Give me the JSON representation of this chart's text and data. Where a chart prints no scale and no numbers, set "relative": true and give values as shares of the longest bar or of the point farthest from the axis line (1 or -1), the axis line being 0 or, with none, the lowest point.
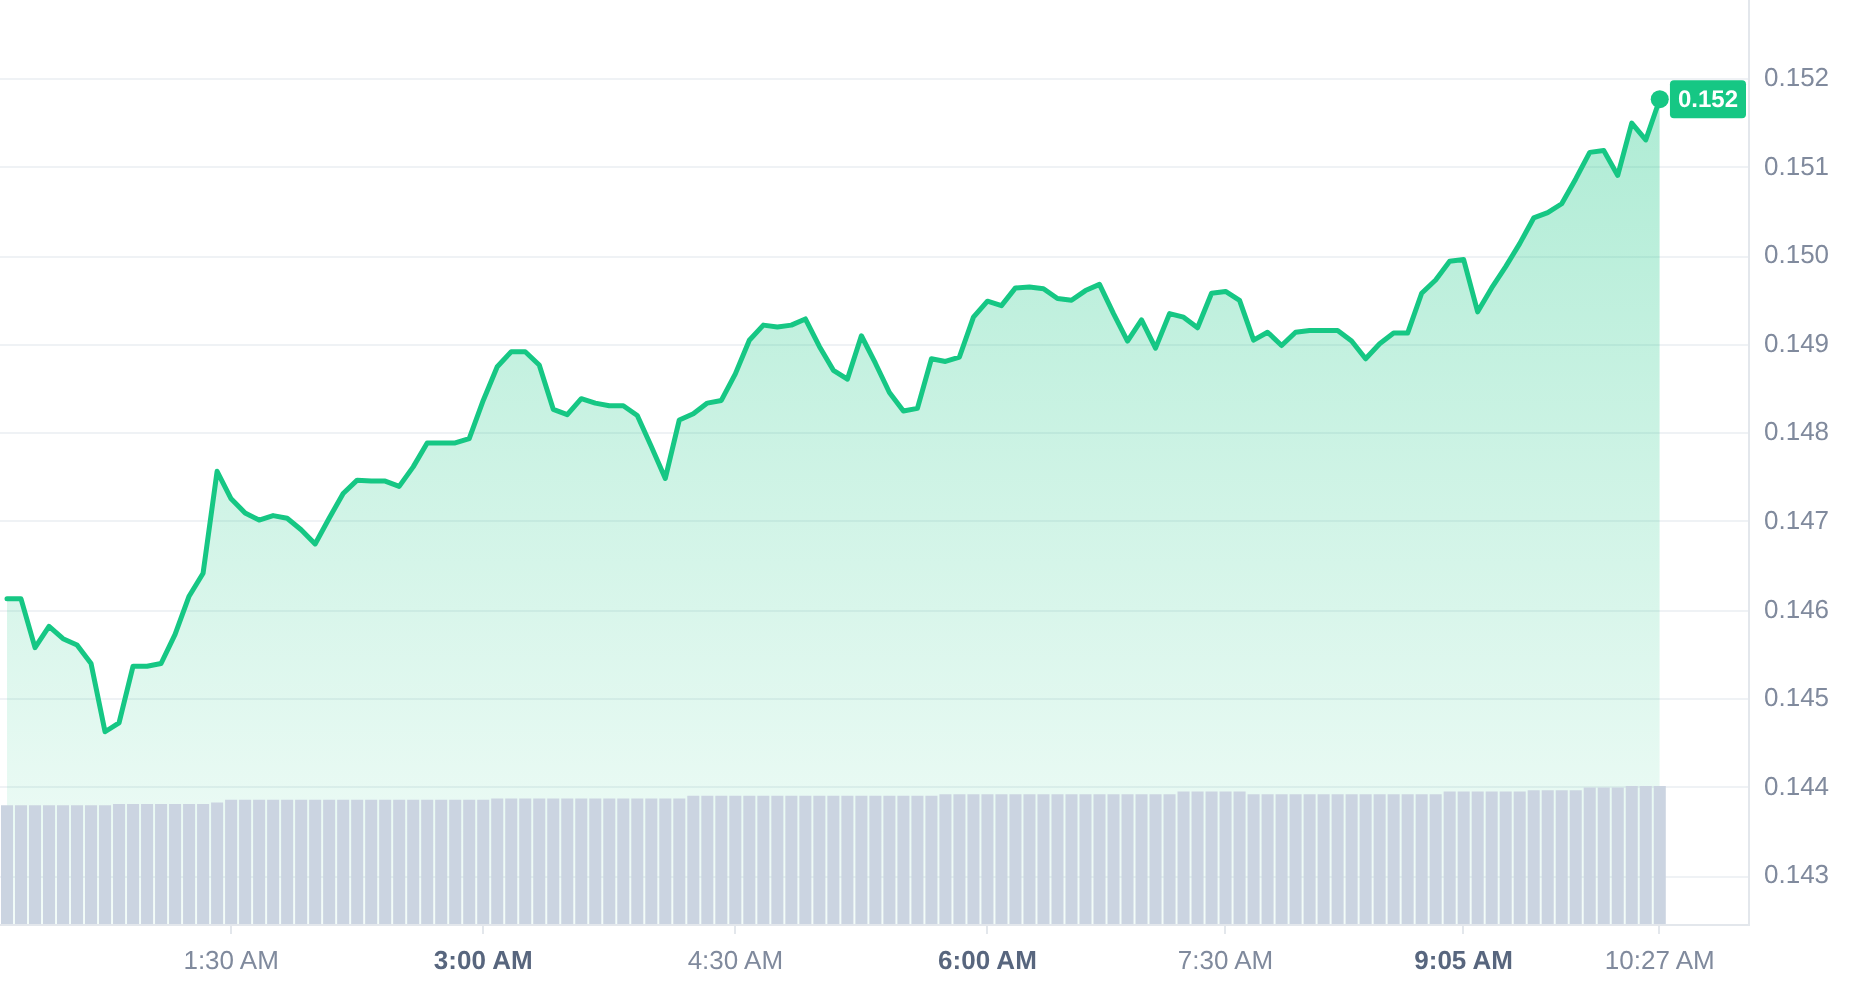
{
  "chart_data": [
    {
      "type": "area",
      "color": "#16c784",
      "categories": [
        null,
        null,
        null,
        null,
        null,
        null,
        null,
        null,
        null,
        null,
        null,
        null,
        null,
        null,
        null,
        null,
        "1:30 AM",
        null,
        null,
        null,
        null,
        null,
        null,
        null,
        null,
        null,
        null,
        null,
        null,
        null,
        null,
        null,
        null,
        null,
        "3:00 AM",
        null,
        null,
        null,
        null,
        null,
        null,
        null,
        null,
        null,
        null,
        null,
        null,
        null,
        null,
        null,
        null,
        null,
        "4:30 AM",
        null,
        null,
        null,
        null,
        null,
        null,
        null,
        null,
        null,
        null,
        null,
        null,
        null,
        null,
        null,
        null,
        null,
        "6:00 AM",
        null,
        null,
        null,
        null,
        null,
        null,
        null,
        null,
        null,
        null,
        null,
        null,
        null,
        null,
        null,
        null,
        "7:30 AM",
        null,
        null,
        null,
        null,
        null,
        null,
        null,
        null,
        null,
        null,
        null,
        null,
        null,
        null,
        null,
        null,
        "9:05 AM",
        null,
        null,
        null,
        null,
        null,
        null,
        null,
        null,
        null,
        null,
        null,
        null,
        null,
        "10:27 AM"
      ],
      "values": [
        0.14613,
        0.14613,
        0.14558,
        0.14582,
        0.14568,
        0.14561,
        0.1454,
        0.14463,
        0.14473,
        0.14537,
        0.14537,
        0.1454,
        0.14573,
        0.14616,
        0.14642,
        0.14757,
        0.14726,
        0.1471,
        0.14702,
        0.14707,
        0.14704,
        0.14691,
        0.14675,
        0.14704,
        0.14732,
        0.14747,
        0.14746,
        0.14746,
        0.1474,
        0.14762,
        0.14789,
        0.14789,
        0.14789,
        0.14794,
        0.14837,
        0.14875,
        0.14892,
        0.14892,
        0.14877,
        0.14827,
        0.14821,
        0.14839,
        0.14834,
        0.14831,
        0.14831,
        0.1482,
        0.14785,
        0.14749,
        0.14815,
        0.14822,
        0.14834,
        0.14837,
        0.14867,
        0.14905,
        0.14922,
        0.1492,
        0.14922,
        0.14929,
        0.14898,
        0.14871,
        0.14861,
        0.1491,
        0.14879,
        0.14846,
        0.14825,
        0.14828,
        0.14884,
        0.14881,
        0.14886,
        0.14931,
        0.14949,
        0.14944,
        0.14964,
        0.14965,
        0.14963,
        0.14952,
        0.1495,
        0.14961,
        0.14968,
        0.14935,
        0.14904,
        0.14928,
        0.14896,
        0.14935,
        0.14931,
        0.14919,
        0.14958,
        0.1496,
        0.1495,
        0.14905,
        0.14914,
        0.14899,
        0.14914,
        0.14916,
        0.14916,
        0.14916,
        0.14904,
        0.14884,
        0.14901,
        0.14913,
        0.14913,
        0.14958,
        0.14973,
        0.14994,
        0.14996,
        0.14937,
        0.14964,
        0.14988,
        0.15014,
        0.15043,
        0.15049,
        0.15059,
        0.15087,
        0.15117,
        0.15119,
        0.15091,
        0.1515,
        0.15131,
        0.15177
      ],
      "ylim": [
        0.14246,
        0.15289
      ],
      "yticks": [
        0.143,
        0.144,
        0.145,
        0.146,
        0.147,
        0.148,
        0.149,
        {
          "value": 0.15,
          "label": "0.150"
        },
        0.151,
        0.152
      ],
      "grid": "y",
      "annotations": [
        {
          "text": "0.152",
          "x": "10:27 AM",
          "y": 0.15177
        }
      ]
    },
    {
      "type": "bar",
      "relative": true,
      "color": "#cbd4e1",
      "categories": [
        null,
        null,
        null,
        null,
        null,
        null,
        null,
        null,
        null,
        null,
        null,
        null,
        null,
        null,
        null,
        null,
        null,
        null,
        null,
        null,
        null,
        null,
        null,
        null,
        null,
        null,
        null,
        null,
        null,
        null,
        null,
        null,
        null,
        null,
        null,
        null,
        null,
        null,
        null,
        null,
        null,
        null,
        null,
        null,
        null,
        null,
        null,
        null,
        null,
        null,
        null,
        null,
        null,
        null,
        null,
        null,
        null,
        null,
        null,
        null,
        null,
        null,
        null,
        null,
        null,
        null,
        null,
        null,
        null,
        null,
        null,
        null,
        null,
        null,
        null,
        null,
        null,
        null,
        null,
        null,
        null,
        null,
        null,
        null,
        null,
        null,
        null,
        null,
        null,
        null,
        null,
        null,
        null,
        null,
        null,
        null,
        null,
        null,
        null,
        null,
        null,
        null,
        null,
        null,
        null,
        null,
        null,
        null,
        null,
        null,
        null,
        null,
        null,
        null,
        null,
        null,
        null,
        null,
        null
      ],
      "values": [
        0.86,
        0.86,
        0.86,
        0.86,
        0.86,
        0.86,
        0.86,
        0.86,
        0.87,
        0.87,
        0.87,
        0.87,
        0.87,
        0.87,
        0.87,
        0.88,
        0.9,
        0.9,
        0.9,
        0.9,
        0.9,
        0.9,
        0.9,
        0.9,
        0.9,
        0.9,
        0.9,
        0.9,
        0.9,
        0.9,
        0.9,
        0.9,
        0.9,
        0.9,
        0.9,
        0.91,
        0.91,
        0.91,
        0.91,
        0.91,
        0.91,
        0.91,
        0.91,
        0.91,
        0.91,
        0.91,
        0.91,
        0.91,
        0.91,
        0.93,
        0.93,
        0.93,
        0.93,
        0.93,
        0.93,
        0.93,
        0.93,
        0.93,
        0.93,
        0.93,
        0.93,
        0.93,
        0.93,
        0.93,
        0.93,
        0.93,
        0.93,
        0.94,
        0.94,
        0.94,
        0.94,
        0.94,
        0.94,
        0.94,
        0.94,
        0.94,
        0.94,
        0.94,
        0.94,
        0.94,
        0.94,
        0.94,
        0.94,
        0.94,
        0.96,
        0.96,
        0.96,
        0.96,
        0.96,
        0.94,
        0.94,
        0.94,
        0.94,
        0.94,
        0.94,
        0.94,
        0.94,
        0.94,
        0.94,
        0.94,
        0.94,
        0.94,
        0.94,
        0.96,
        0.96,
        0.96,
        0.96,
        0.96,
        0.96,
        0.97,
        0.97,
        0.97,
        0.97,
        0.99,
        0.99,
        0.99,
        1,
        1,
        1
      ]
    }
  ]
}
